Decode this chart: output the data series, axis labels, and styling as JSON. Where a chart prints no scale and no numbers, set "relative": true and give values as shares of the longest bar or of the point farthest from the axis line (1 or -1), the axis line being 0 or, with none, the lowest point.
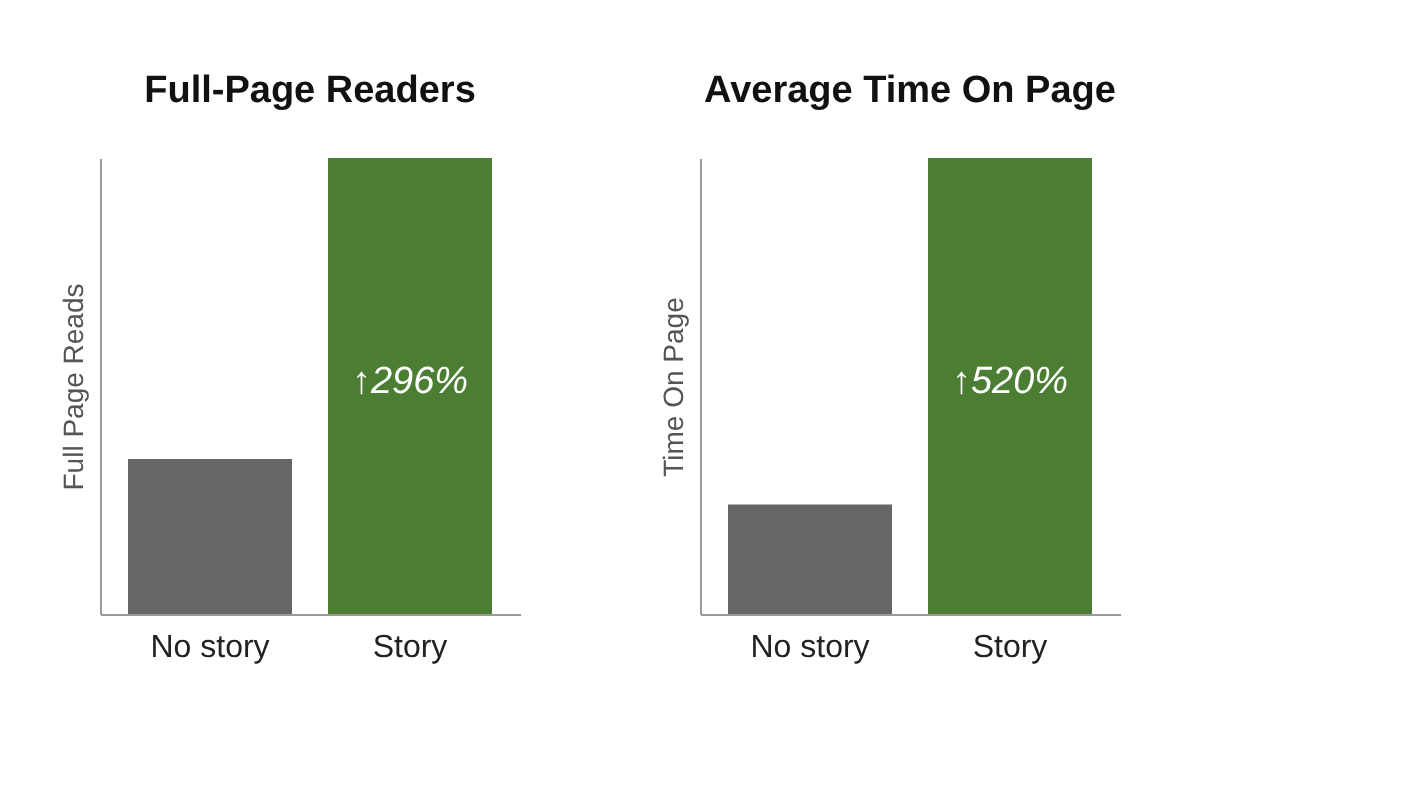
{
  "chart_data": [
    {
      "type": "bar",
      "title": "Full-Page Readers",
      "ylabel": "Full Page Reads",
      "relative": true,
      "categories": [
        "No story",
        "Story"
      ],
      "values": [
        0.34,
        1
      ],
      "colors": [
        "#666666",
        "#4b7d32"
      ],
      "annotations": [
        "↑296%"
      ]
    },
    {
      "type": "bar",
      "title": "Average Time On Page",
      "ylabel": "Time On Page",
      "relative": true,
      "categories": [
        "No story",
        "Story"
      ],
      "values": [
        0.24,
        1
      ],
      "colors": [
        "#666666",
        "#4b7d32"
      ],
      "annotations": [
        "↑520%"
      ]
    }
  ]
}
